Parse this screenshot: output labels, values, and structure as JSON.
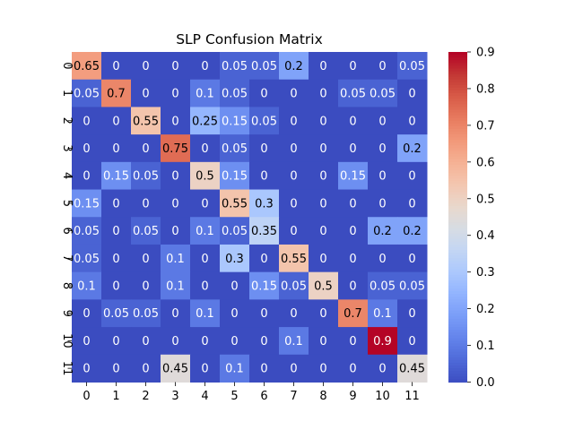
{
  "chart_data": {
    "type": "heatmap",
    "title": "SLP Confusion Matrix",
    "x_ticks": [
      "0",
      "1",
      "2",
      "3",
      "4",
      "5",
      "6",
      "7",
      "8",
      "9",
      "10",
      "11"
    ],
    "y_ticks": [
      "0",
      "1",
      "2",
      "3",
      "4",
      "5",
      "6",
      "7",
      "8",
      "9",
      "10",
      "11"
    ],
    "matrix": [
      [
        0.65,
        0,
        0,
        0,
        0,
        0.05,
        0.05,
        0.2,
        0,
        0,
        0,
        0.05
      ],
      [
        0.05,
        0.7,
        0,
        0,
        0.1,
        0.05,
        0,
        0,
        0,
        0.05,
        0.05,
        0
      ],
      [
        0,
        0,
        0.55,
        0,
        0.25,
        0.15,
        0.05,
        0,
        0,
        0,
        0,
        0
      ],
      [
        0,
        0,
        0,
        0.75,
        0,
        0.05,
        0,
        0,
        0,
        0,
        0,
        0.2
      ],
      [
        0,
        0.15,
        0.05,
        0,
        0.5,
        0.15,
        0,
        0,
        0,
        0.15,
        0,
        0
      ],
      [
        0.15,
        0,
        0,
        0,
        0,
        0.55,
        0.3,
        0,
        0,
        0,
        0,
        0
      ],
      [
        0.05,
        0,
        0.05,
        0,
        0.1,
        0.05,
        0.35,
        0,
        0,
        0,
        0.2,
        0.2
      ],
      [
        0.05,
        0,
        0,
        0.1,
        0,
        0.3,
        0,
        0.55,
        0,
        0,
        0,
        0
      ],
      [
        0.1,
        0,
        0,
        0.1,
        0,
        0,
        0.15,
        0.05,
        0.5,
        0,
        0.05,
        0.05
      ],
      [
        0,
        0.05,
        0.05,
        0,
        0.1,
        0,
        0,
        0,
        0,
        0.7,
        0.1,
        0
      ],
      [
        0,
        0,
        0,
        0,
        0,
        0,
        0,
        0.1,
        0,
        0,
        0.9,
        0
      ],
      [
        0,
        0,
        0,
        0.45,
        0,
        0.1,
        0,
        0,
        0,
        0,
        0,
        0.45
      ]
    ],
    "cell_labels": [
      [
        "0.65",
        "0",
        "0",
        "0",
        "0",
        "0.05",
        "0.05",
        "0.2",
        "0",
        "0",
        "0",
        "0.05"
      ],
      [
        "0.05",
        "0.7",
        "0",
        "0",
        "0.1",
        "0.05",
        "0",
        "0",
        "0",
        "0.05",
        "0.05",
        "0"
      ],
      [
        "0",
        "0",
        "0.55",
        "0",
        "0.25",
        "0.15",
        "0.05",
        "0",
        "0",
        "0",
        "0",
        "0"
      ],
      [
        "0",
        "0",
        "0",
        "0.75",
        "0",
        "0.05",
        "0",
        "0",
        "0",
        "0",
        "0",
        "0.2"
      ],
      [
        "0",
        "0.15",
        "0.05",
        "0",
        "0.5",
        "0.15",
        "0",
        "0",
        "0",
        "0.15",
        "0",
        "0"
      ],
      [
        "0.15",
        "0",
        "0",
        "0",
        "0",
        "0.55",
        "0.3",
        "0",
        "0",
        "0",
        "0",
        "0"
      ],
      [
        "0.05",
        "0",
        "0.05",
        "0",
        "0.1",
        "0.05",
        "0.35",
        "0",
        "0",
        "0",
        "0.2",
        "0.2"
      ],
      [
        "0.05",
        "0",
        "0",
        "0.1",
        "0",
        "0.3",
        "0",
        "0.55",
        "0",
        "0",
        "0",
        "0"
      ],
      [
        "0.1",
        "0",
        "0",
        "0.1",
        "0",
        "0",
        "0.15",
        "0.05",
        "0.5",
        "0",
        "0.05",
        "0.05"
      ],
      [
        "0",
        "0.05",
        "0.05",
        "0",
        "0.1",
        "0",
        "0",
        "0",
        "0",
        "0.7",
        "0.1",
        "0"
      ],
      [
        "0",
        "0",
        "0",
        "0",
        "0",
        "0",
        "0",
        "0.1",
        "0",
        "0",
        "0.9",
        "0"
      ],
      [
        "0",
        "0",
        "0",
        "0.45",
        "0",
        "0.1",
        "0",
        "0",
        "0",
        "0",
        "0",
        "0.45"
      ]
    ],
    "colorbar": {
      "range": [
        0.0,
        0.9
      ],
      "ticks": [
        "0.0",
        "0.1",
        "0.2",
        "0.3",
        "0.4",
        "0.5",
        "0.6",
        "0.7",
        "0.8",
        "0.9"
      ]
    },
    "colormap": "coolwarm",
    "colors": {
      "low": "#3b4cc0",
      "mid": "#dddddd",
      "high": "#b40426"
    },
    "grid": false
  }
}
